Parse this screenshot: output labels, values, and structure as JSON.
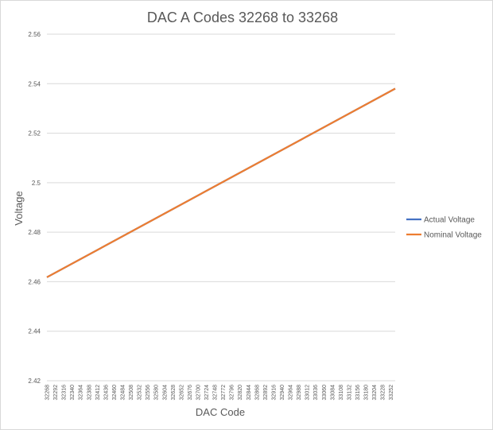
{
  "chart_data": {
    "type": "line",
    "title": "DAC A Codes 32268 to 33268",
    "xlabel": "DAC Code",
    "ylabel": "Voltage",
    "ylim": [
      2.42,
      2.56
    ],
    "yticks": [
      2.42,
      2.44,
      2.46,
      2.48,
      2.5,
      2.52,
      2.54,
      2.56
    ],
    "xlim": [
      32268,
      33268
    ],
    "xtick_labels": [
      32268,
      32292,
      32316,
      32340,
      32364,
      32388,
      32412,
      32436,
      32460,
      32484,
      32508,
      32532,
      32556,
      32580,
      32604,
      32628,
      32652,
      32676,
      32700,
      32724,
      32748,
      32772,
      32796,
      32820,
      32844,
      32868,
      32892,
      32916,
      32940,
      32964,
      32988,
      33012,
      33036,
      33060,
      33084,
      33108,
      33132,
      33156,
      33180,
      33204,
      33228,
      33252
    ],
    "grid": true,
    "legend_position": "right",
    "series": [
      {
        "name": "Actual Voltage",
        "color": "#4472C4",
        "x": [
          32268,
          33268
        ],
        "y": [
          2.4618,
          2.538
        ]
      },
      {
        "name": "Nominal Voltage",
        "color": "#ED7D31",
        "x": [
          32268,
          33268
        ],
        "y": [
          2.4618,
          2.538
        ]
      }
    ]
  }
}
